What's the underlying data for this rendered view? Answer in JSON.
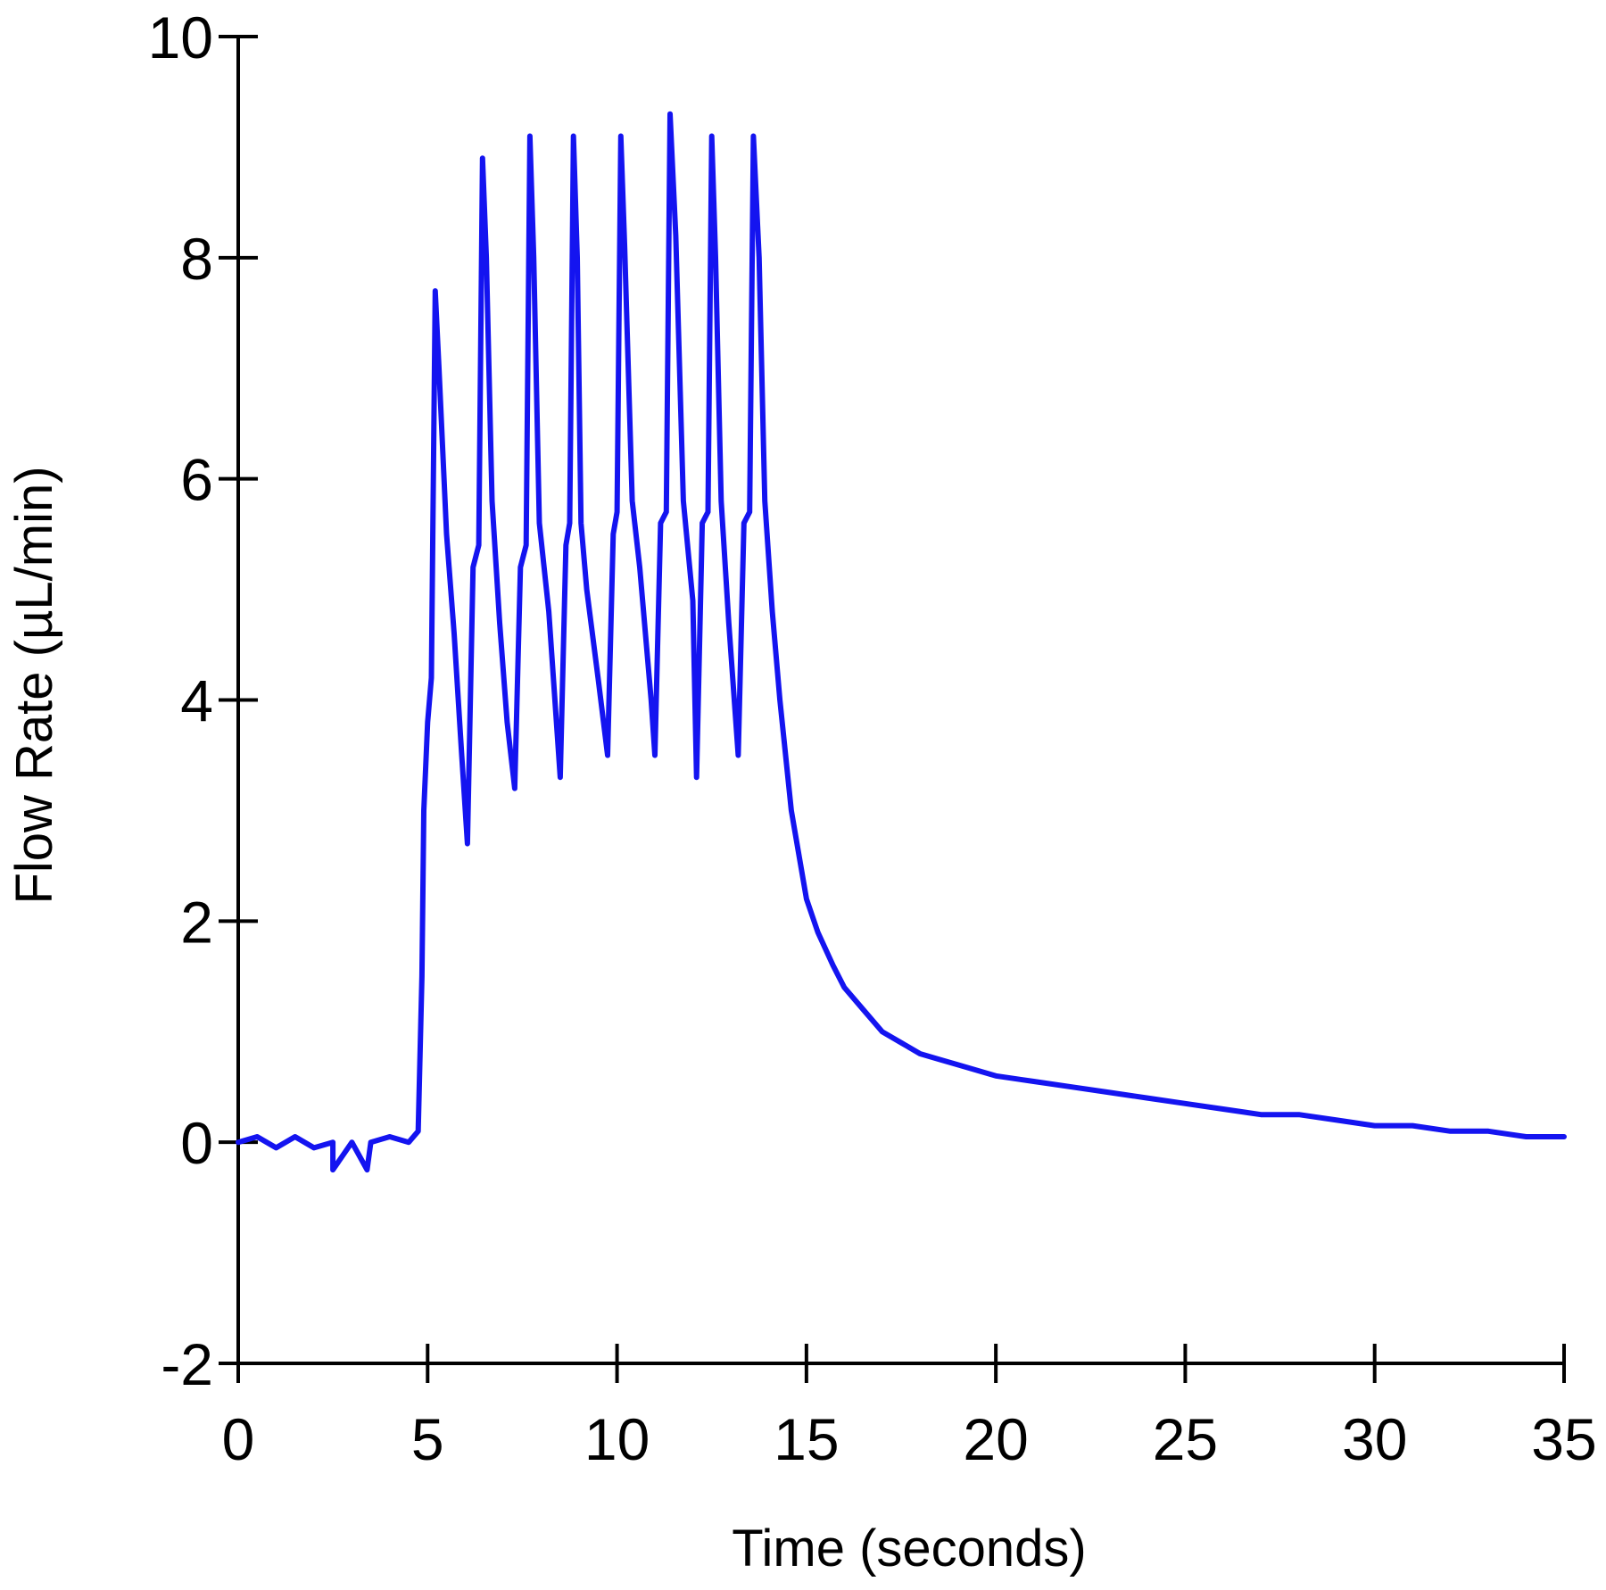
{
  "chart_data": {
    "type": "line",
    "title": "",
    "xlabel": "Time (seconds)",
    "ylabel": "Flow Rate (µL/min)",
    "xlim": [
      0,
      35
    ],
    "ylim": [
      -2,
      10
    ],
    "xticks": [
      0,
      5,
      10,
      15,
      20,
      25,
      30,
      35
    ],
    "yticks": [
      -2,
      0,
      2,
      4,
      6,
      8,
      10
    ],
    "grid": false,
    "legend": "none",
    "line_color": "#1414f0",
    "series": [
      {
        "x": [
          0,
          0.5,
          1,
          1.5,
          2,
          2.5,
          2.5,
          3,
          3.4,
          3.5,
          4,
          4.5,
          4.75,
          4.85,
          4.9,
          5.0,
          5.1,
          5.2,
          5.3,
          5.5,
          5.7,
          5.9,
          6.05,
          6.2,
          6.35,
          6.45,
          6.55,
          6.7,
          6.9,
          7.1,
          7.3,
          7.45,
          7.6,
          7.7,
          7.8,
          7.95,
          8.2,
          8.5,
          8.65,
          8.75,
          8.85,
          8.95,
          9.05,
          9.2,
          9.5,
          9.75,
          9.9,
          10.0,
          10.1,
          10.2,
          10.4,
          10.6,
          10.9,
          11.0,
          11.15,
          11.3,
          11.4,
          11.55,
          11.75,
          12.0,
          12.1,
          12.25,
          12.4,
          12.5,
          12.6,
          12.75,
          12.95,
          13.2,
          13.35,
          13.5,
          13.6,
          13.75,
          13.9,
          14.1,
          14.3,
          14.6,
          14.8,
          15.0,
          15.3,
          15.7,
          16.0,
          16.5,
          17.0,
          17.5,
          18.0,
          18.5,
          19.0,
          20.0,
          21.0,
          22.0,
          23.0,
          24.0,
          25.0,
          26.0,
          27.0,
          28.0,
          29.0,
          30.0,
          31.0,
          32.0,
          33.0,
          34.0,
          35.0
        ],
        "y": [
          0.0,
          0.05,
          -0.05,
          0.05,
          -0.05,
          0.0,
          -0.25,
          0.0,
          -0.25,
          0.0,
          0.05,
          0.0,
          0.1,
          1.5,
          3.0,
          3.8,
          4.2,
          7.7,
          7.0,
          5.5,
          4.6,
          3.5,
          2.7,
          5.2,
          5.4,
          8.9,
          8.0,
          5.8,
          4.7,
          3.8,
          3.2,
          5.2,
          5.4,
          9.1,
          8.0,
          5.6,
          4.8,
          3.3,
          5.4,
          5.6,
          9.1,
          8.0,
          5.6,
          5.0,
          4.2,
          3.5,
          5.5,
          5.7,
          9.1,
          8.1,
          5.8,
          5.2,
          4.0,
          3.5,
          5.6,
          5.7,
          9.3,
          8.2,
          5.8,
          4.9,
          3.3,
          5.6,
          5.7,
          9.1,
          8.0,
          5.8,
          4.7,
          3.5,
          5.6,
          5.7,
          9.1,
          8.0,
          5.8,
          4.8,
          4.0,
          3.0,
          2.6,
          2.2,
          1.9,
          1.6,
          1.4,
          1.2,
          1.0,
          0.9,
          0.8,
          0.75,
          0.7,
          0.6,
          0.55,
          0.5,
          0.45,
          0.4,
          0.35,
          0.3,
          0.25,
          0.25,
          0.2,
          0.15,
          0.15,
          0.1,
          0.1,
          0.05,
          0.05
        ]
      }
    ]
  }
}
